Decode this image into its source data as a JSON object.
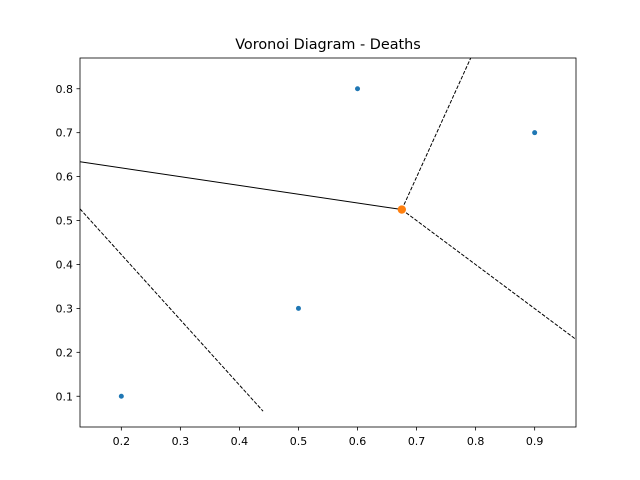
{
  "chart_data": {
    "type": "scatter",
    "title": "Voronoi Diagram - Deaths",
    "xlabel": "",
    "ylabel": "",
    "xlim": [
      0.13,
      0.97
    ],
    "ylim": [
      0.03,
      0.87
    ],
    "xticks": [
      0.2,
      0.3,
      0.4,
      0.5,
      0.6,
      0.7,
      0.8,
      0.9
    ],
    "xtick_labels": [
      "0.2",
      "0.3",
      "0.4",
      "0.5",
      "0.6",
      "0.7",
      "0.8",
      "0.9"
    ],
    "yticks": [
      0.1,
      0.2,
      0.3,
      0.4,
      0.5,
      0.6,
      0.7,
      0.8
    ],
    "ytick_labels": [
      "0.1",
      "0.2",
      "0.3",
      "0.4",
      "0.5",
      "0.6",
      "0.7",
      "0.8"
    ],
    "grid": false,
    "points": {
      "x": [
        0.2,
        0.5,
        0.6,
        0.9
      ],
      "y": [
        0.1,
        0.3,
        0.8,
        0.7
      ],
      "color": "#1f77b4"
    },
    "vertices": {
      "x": [
        0.675
      ],
      "y": [
        0.525
      ],
      "color": "#ff7f0e"
    },
    "ridges": [
      {
        "style": "solid",
        "from": [
          0.675,
          0.525
        ],
        "to": [
          0.13,
          0.6338
        ]
      },
      {
        "style": "dashed",
        "from": [
          0.675,
          0.525
        ],
        "to": [
          0.7917,
          0.87
        ]
      },
      {
        "style": "dashed",
        "from": [
          0.675,
          0.525
        ],
        "to": [
          0.97,
          0.2294
        ]
      },
      {
        "style": "dashed",
        "from": [
          0.13,
          0.5265
        ],
        "to": [
          0.44,
          0.066
        ]
      }
    ],
    "colors": {
      "ridge": "#000000",
      "axes": "#000000"
    }
  }
}
